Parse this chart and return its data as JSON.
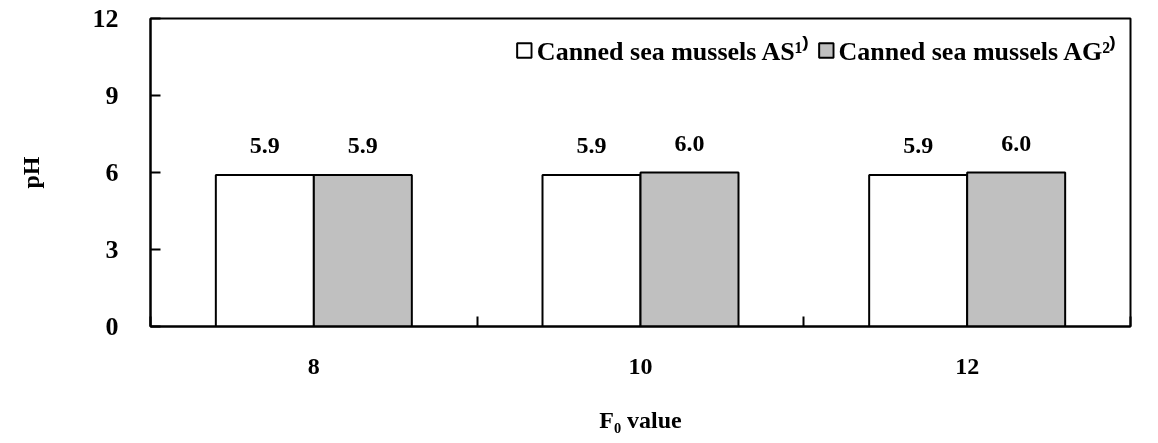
{
  "chart_data": {
    "type": "bar",
    "xlabel": "F₀ value",
    "ylabel": "pH",
    "categories": [
      "8",
      "10",
      "12"
    ],
    "series": [
      {
        "name": "Canned sea mussels AS¹⁾",
        "color": "#ffffff",
        "values": [
          5.9,
          5.9,
          5.9
        ],
        "value_labels": [
          "5.9",
          "5.9",
          "5.9"
        ]
      },
      {
        "name": "Canned sea mussels AG²⁾",
        "color": "#c0c0c0",
        "values": [
          5.9,
          6.0,
          6.0
        ],
        "value_labels": [
          "5.9",
          "6.0",
          "6.0"
        ]
      }
    ],
    "ylim": [
      0,
      12
    ],
    "yticks": [
      0,
      3,
      6,
      9,
      12
    ],
    "legend": "top right"
  }
}
